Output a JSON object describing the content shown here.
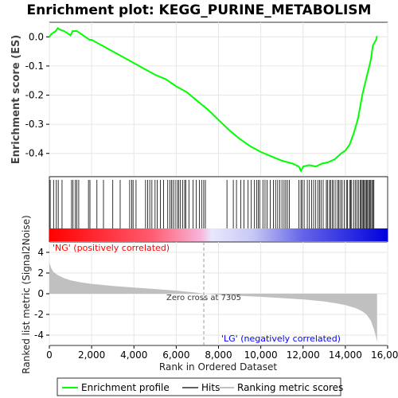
{
  "chart_data": {
    "type": "line",
    "title": "Enrichment plot: KEGG_PURINE_METABOLISM",
    "xlabel": "Rank in Ordered Dataset",
    "x_ticks": [
      0,
      2000,
      4000,
      6000,
      8000,
      10000,
      12000,
      14000,
      16000
    ],
    "x_tick_labels": [
      "0",
      "2,000",
      "4,000",
      "6,000",
      "8,000",
      "10,000",
      "12,000",
      "14,000",
      "16,000"
    ],
    "xlim": [
      0,
      16000
    ],
    "total_ranks": 15500,
    "es_panel": {
      "ylabel": "Enrichment score (ES)",
      "ylim": [
        -0.48,
        0.05
      ],
      "y_ticks": [
        0.0,
        -0.1,
        -0.2,
        -0.3,
        -0.4
      ],
      "y_tick_labels": [
        "0.0",
        "-0.1",
        "-0.2",
        "-0.3",
        "-0.4"
      ],
      "series_name": "Enrichment profile",
      "color": "#00ff00",
      "points": [
        [
          0,
          0.0
        ],
        [
          100,
          0.01
        ],
        [
          200,
          0.015
        ],
        [
          300,
          0.02
        ],
        [
          400,
          0.03
        ],
        [
          500,
          0.025
        ],
        [
          700,
          0.02
        ],
        [
          900,
          0.01
        ],
        [
          1000,
          0.005
        ],
        [
          1100,
          0.02
        ],
        [
          1300,
          0.02
        ],
        [
          1500,
          0.01
        ],
        [
          1700,
          0.0
        ],
        [
          1900,
          -0.01
        ],
        [
          2000,
          -0.01
        ],
        [
          2500,
          -0.03
        ],
        [
          3000,
          -0.05
        ],
        [
          3500,
          -0.07
        ],
        [
          4000,
          -0.09
        ],
        [
          4500,
          -0.11
        ],
        [
          5000,
          -0.13
        ],
        [
          5500,
          -0.145
        ],
        [
          6000,
          -0.17
        ],
        [
          6500,
          -0.19
        ],
        [
          7000,
          -0.22
        ],
        [
          7500,
          -0.25
        ],
        [
          8000,
          -0.285
        ],
        [
          8500,
          -0.32
        ],
        [
          9000,
          -0.35
        ],
        [
          9500,
          -0.375
        ],
        [
          10000,
          -0.395
        ],
        [
          10500,
          -0.41
        ],
        [
          11000,
          -0.425
        ],
        [
          11500,
          -0.435
        ],
        [
          11800,
          -0.445
        ],
        [
          11900,
          -0.46
        ],
        [
          12000,
          -0.445
        ],
        [
          12300,
          -0.44
        ],
        [
          12600,
          -0.445
        ],
        [
          12900,
          -0.435
        ],
        [
          13200,
          -0.43
        ],
        [
          13500,
          -0.42
        ],
        [
          13800,
          -0.4
        ],
        [
          14000,
          -0.39
        ],
        [
          14200,
          -0.37
        ],
        [
          14400,
          -0.33
        ],
        [
          14600,
          -0.28
        ],
        [
          14800,
          -0.2
        ],
        [
          15000,
          -0.14
        ],
        [
          15200,
          -0.08
        ],
        [
          15300,
          -0.03
        ],
        [
          15450,
          -0.01
        ],
        [
          15500,
          0.003
        ]
      ]
    },
    "hits_panel": {
      "series_name": "Hits",
      "hit_positions": [
        40,
        200,
        330,
        420,
        600,
        1050,
        1120,
        1230,
        1300,
        1390,
        1850,
        1920,
        2250,
        2560,
        3000,
        3350,
        3800,
        3900,
        3960,
        4100,
        4550,
        4650,
        4750,
        4850,
        5000,
        5100,
        5250,
        5400,
        5600,
        5700,
        5780,
        5850,
        5950,
        6050,
        6120,
        6200,
        6300,
        6400,
        6450,
        6600,
        6800,
        6950,
        7100,
        7200,
        7300,
        7380,
        8400,
        8700,
        8850,
        9050,
        9200,
        9400,
        9550,
        9700,
        9800,
        9880,
        9950,
        10100,
        10200,
        10300,
        10450,
        10600,
        10700,
        10800,
        10900,
        11000,
        11100,
        11180,
        11260,
        11350,
        11800,
        11900,
        11960,
        12050,
        12200,
        12300,
        12400,
        12500,
        12600,
        12700,
        12780,
        12850,
        12950,
        13100,
        13150,
        13250,
        13300,
        13380,
        13450,
        13550,
        13650,
        13700,
        13780,
        13850,
        13950,
        14050,
        14100,
        14200,
        14250,
        14300,
        14400,
        14480,
        14550,
        14620,
        14700,
        14750,
        14800,
        14850,
        14900,
        14950,
        15000,
        15050,
        15100,
        15150,
        15200,
        15250,
        15300,
        15350
      ]
    },
    "metric_panel": {
      "ylabel": "Ranked list metric (Signal2Noise)",
      "series_name": "Ranking metric scores",
      "ylim": [
        -5,
        5
      ],
      "y_ticks": [
        4,
        2,
        0,
        -2,
        -4
      ],
      "y_tick_labels": [
        "4",
        "2",
        "0",
        "-2",
        "-4"
      ],
      "zero_cross": 7305,
      "zero_cross_label": "Zero cross at 7305",
      "pos_label": "'NG' (positively correlated)",
      "neg_label": "'LG' (negatively correlated)",
      "points": [
        [
          0,
          3.0
        ],
        [
          100,
          2.4
        ],
        [
          200,
          2.1
        ],
        [
          400,
          1.8
        ],
        [
          700,
          1.5
        ],
        [
          1000,
          1.3
        ],
        [
          1500,
          1.1
        ],
        [
          2000,
          0.95
        ],
        [
          3000,
          0.75
        ],
        [
          4000,
          0.6
        ],
        [
          5000,
          0.45
        ],
        [
          6000,
          0.3
        ],
        [
          7000,
          0.1
        ],
        [
          7305,
          0.0
        ],
        [
          8000,
          -0.1
        ],
        [
          9000,
          -0.2
        ],
        [
          10000,
          -0.3
        ],
        [
          11000,
          -0.42
        ],
        [
          12000,
          -0.55
        ],
        [
          13000,
          -0.75
        ],
        [
          13500,
          -0.9
        ],
        [
          14000,
          -1.1
        ],
        [
          14500,
          -1.4
        ],
        [
          14800,
          -1.7
        ],
        [
          15000,
          -2.0
        ],
        [
          15200,
          -2.6
        ],
        [
          15350,
          -3.4
        ],
        [
          15450,
          -4.2
        ],
        [
          15500,
          -4.7
        ]
      ]
    },
    "legend": {
      "entries": [
        {
          "name": "Enrichment profile",
          "color": "#00ff00"
        },
        {
          "name": "Hits",
          "color": "#000000"
        },
        {
          "name": "Ranking metric scores",
          "color": "#c0c0c0"
        }
      ]
    }
  }
}
